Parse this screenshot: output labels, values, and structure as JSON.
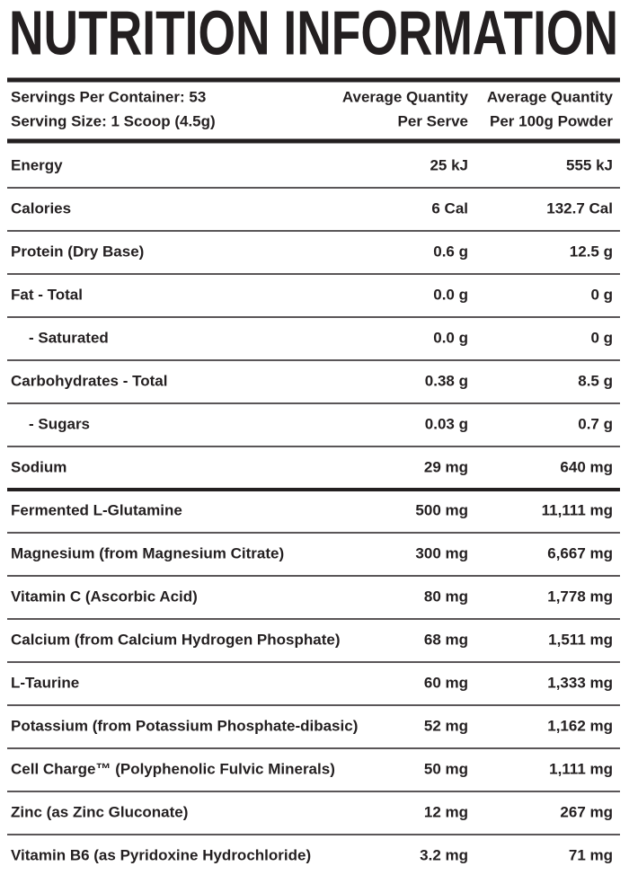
{
  "title": "NUTRITION INFORMATION",
  "header": {
    "left": [
      "Servings Per Container: 53",
      "Serving Size: 1 Scoop (4.5g)"
    ],
    "columns": [
      [
        "Average Quantity",
        "Per Serve"
      ],
      [
        "Average Quantity",
        "Per 100g Powder"
      ]
    ]
  },
  "rows": [
    [
      "Energy",
      "25 kJ",
      "555 kJ"
    ],
    [
      "Calories",
      "6 Cal",
      "132.7 Cal"
    ],
    [
      "Protein (Dry Base)",
      "0.6 g",
      "12.5 g"
    ],
    [
      "Fat - Total",
      "0.0 g",
      "0 g"
    ],
    [
      "- Saturated",
      "0.0 g",
      "0 g"
    ],
    [
      "Carbohydrates - Total",
      "0.38 g",
      "8.5 g"
    ],
    [
      "- Sugars",
      "0.03 g",
      "0.7 g"
    ],
    [
      "Sodium",
      "29 mg",
      "640 mg"
    ],
    [
      "Fermented L-Glutamine",
      "500 mg",
      "11,111 mg"
    ],
    [
      "Magnesium (from Magnesium Citrate)",
      "300 mg",
      "6,667 mg"
    ],
    [
      "Vitamin C (Ascorbic Acid)",
      "80 mg",
      "1,778 mg"
    ],
    [
      "Calcium (from Calcium Hydrogen Phosphate)",
      "68 mg",
      "1,511 mg"
    ],
    [
      "L-Taurine",
      "60 mg",
      "1,333 mg"
    ],
    [
      "Potassium (from Potassium Phosphate-dibasic)",
      "52 mg",
      "1,162 mg"
    ],
    [
      "Cell Charge™ (Polyphenolic Fulvic Minerals)",
      "50 mg",
      "1,111 mg"
    ],
    [
      "Zinc (as Zinc Gluconate)",
      "12 mg",
      "267 mg"
    ],
    [
      "Vitamin B6 (as Pyridoxine Hydrochloride)",
      "3.2 mg",
      "71 mg"
    ]
  ]
}
